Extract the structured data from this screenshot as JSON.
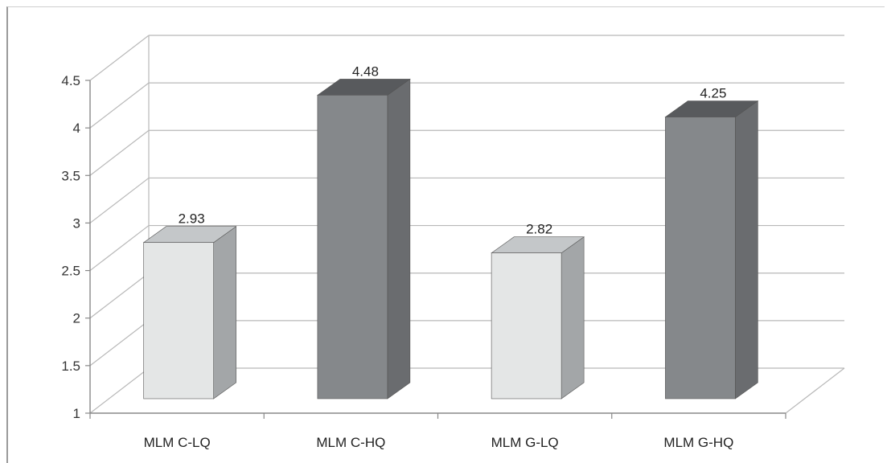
{
  "chart_data": {
    "type": "bar",
    "categories": [
      "MLM C-LQ",
      "MLM C-HQ",
      "MLM G-LQ",
      "MLM G-HQ"
    ],
    "values": [
      2.93,
      4.48,
      2.82,
      4.25
    ],
    "data_labels": [
      "2.93",
      "4.48",
      "2.82",
      "4.25"
    ],
    "title": "",
    "xlabel": "",
    "ylabel": "",
    "ylim": [
      1,
      4.5
    ],
    "yticks": [
      1,
      1.5,
      2,
      2.5,
      3,
      3.5,
      4,
      4.5
    ],
    "ytick_labels": [
      "1",
      "1.5",
      "2",
      "2.5",
      "3",
      "3.5",
      "4",
      "4.5"
    ],
    "grid": true,
    "legend": "none",
    "style": "3d-column",
    "bar_colors": [
      "#e4e6e6",
      "#85888b",
      "#e4e6e6",
      "#85888b"
    ],
    "bar_side_colors": [
      "#a3a6a8",
      "#6a6c6f",
      "#a3a6a8",
      "#6a6c6f"
    ],
    "bar_top_colors": [
      "#c4c7c9",
      "#585a5d",
      "#c4c7c9",
      "#585a5d"
    ]
  }
}
